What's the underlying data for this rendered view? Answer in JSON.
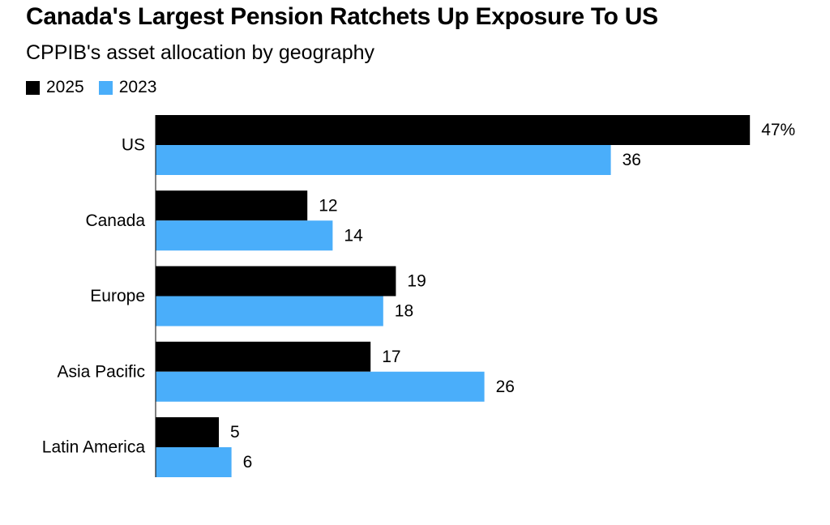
{
  "chart_data": {
    "type": "bar",
    "orientation": "horizontal",
    "title": "Canada's Largest Pension Ratchets Up Exposure To US",
    "subtitle": "CPPIB's asset allocation by geography",
    "categories": [
      "US",
      "Canada",
      "Europe",
      "Asia Pacific",
      "Latin America"
    ],
    "series": [
      {
        "name": "2025",
        "color": "#000000",
        "values": [
          47,
          12,
          19,
          17,
          5
        ],
        "labels": [
          "47%",
          "12",
          "19",
          "17",
          "5"
        ]
      },
      {
        "name": "2023",
        "color": "#4aaefa",
        "values": [
          36,
          14,
          18,
          26,
          6
        ],
        "labels": [
          "36",
          "14",
          "18",
          "26",
          "6"
        ]
      }
    ],
    "xlim": [
      0,
      47
    ],
    "grid": false,
    "legend_position": "top-left"
  }
}
